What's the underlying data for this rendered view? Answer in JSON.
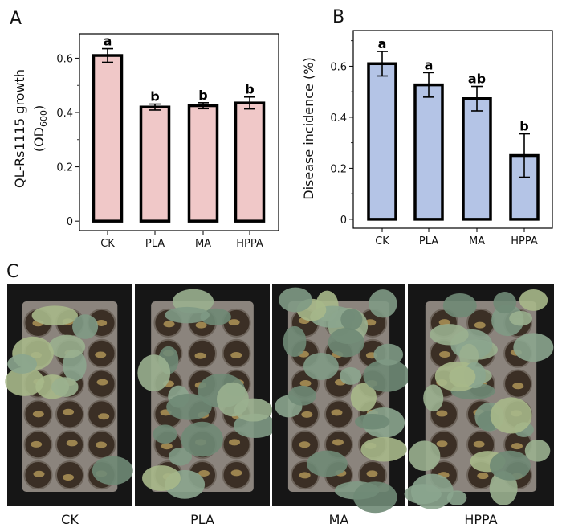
{
  "panels": {
    "a": "A",
    "b": "B",
    "c": "C"
  },
  "chart_data": [
    {
      "type": "bar",
      "title": "A",
      "categories": [
        "CK",
        "PLA",
        "MA",
        "HPPA"
      ],
      "values": [
        0.61,
        0.42,
        0.425,
        0.435
      ],
      "errors": [
        0.025,
        0.011,
        0.011,
        0.022
      ],
      "significance": [
        "a",
        "b",
        "b",
        "b"
      ],
      "ylabel_line1": "QL-Rs1115 growth",
      "ylabel_line2_pre": "(OD",
      "ylabel_line2_sub": "600",
      "ylabel_line2_post": ")",
      "xlabel": "",
      "ylim": [
        -0.035,
        0.69
      ],
      "yticks": [
        0,
        0.2,
        0.4,
        0.6
      ],
      "ytick_labels": [
        "0",
        "0.2",
        "0.4",
        "0.6"
      ],
      "minor_yticks": [
        0.1,
        0.3,
        0.5
      ],
      "grid": false,
      "bar_color": "#f0c8c8"
    },
    {
      "type": "bar",
      "title": "B",
      "categories": [
        "CK",
        "PLA",
        "MA",
        "HPPA"
      ],
      "values": [
        0.61,
        0.527,
        0.473,
        0.25
      ],
      "errors": [
        0.048,
        0.048,
        0.048,
        0.085
      ],
      "significance": [
        "a",
        "a",
        "ab",
        "b"
      ],
      "ylabel": "Disease incidence (%)",
      "xlabel": "",
      "ylim": [
        -0.035,
        0.74
      ],
      "yticks": [
        0,
        0.2,
        0.4,
        0.6
      ],
      "ytick_labels": [
        "0",
        "0.2",
        "0.4",
        "0.6"
      ],
      "minor_yticks": [
        0.1,
        0.3,
        0.5,
        0.7
      ],
      "grid": false,
      "bar_color": "#b4c4e6"
    }
  ],
  "photos": {
    "labels": [
      "CK",
      "PLA",
      "MA",
      "HPPA"
    ]
  }
}
